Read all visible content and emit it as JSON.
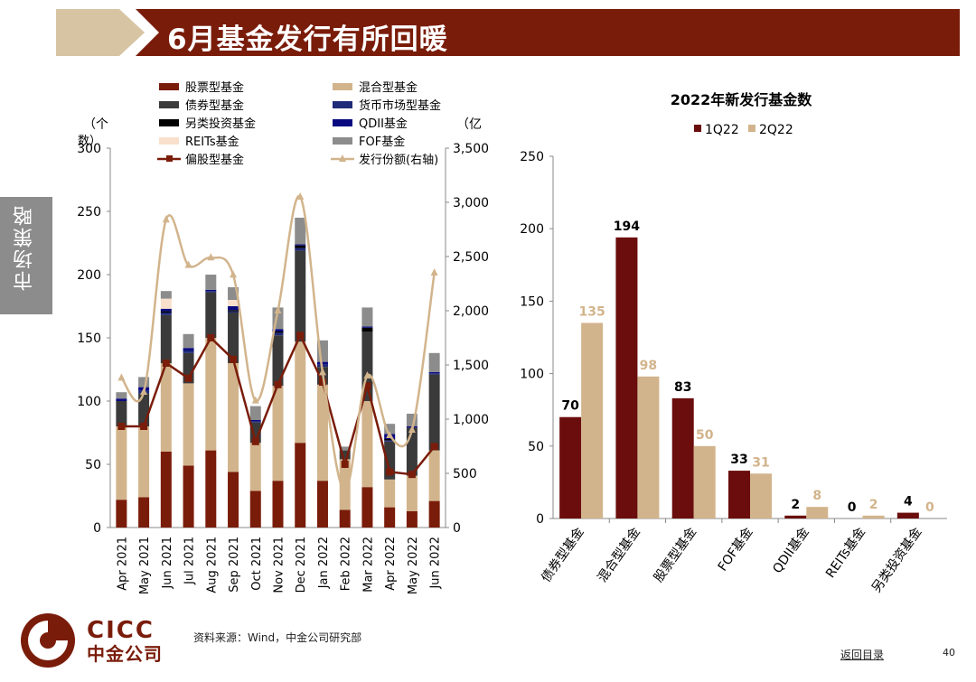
{
  "page": {
    "title": "6月基金发行有所回暖",
    "side_tab": "市场策略",
    "source": "资料来源：Wind，中金公司研究部",
    "back_link": "返回目录",
    "page_number": "40",
    "logo_en": "CICC",
    "logo_cn": "中金公司"
  },
  "colors": {
    "brand": "#7a1c0a",
    "title_bar": "#7a1c0a",
    "stock": "#7a1c0a",
    "mixed": "#d2b48c",
    "bond": "#3a3a3a",
    "money": "#1f2a78",
    "alt": "#000000",
    "qdii": "#0a0a80",
    "reits": "#f8e0cc",
    "fof": "#8c8c8c",
    "partial_stock": "#7a1c0a",
    "issuance": "#d2b48c",
    "q1": "#6b0d0d",
    "q2": "#d2b48c"
  },
  "chart_data": [
    {
      "type": "bar",
      "stacked": true,
      "categories": [
        "Apr 2021",
        "May 2021",
        "Jun 2021",
        "Jul 2021",
        "Aug 2021",
        "Sep 2021",
        "Oct 2021",
        "Nov 2021",
        "Dec 2021",
        "Jan 2022",
        "Feb 2022",
        "Mar 2022",
        "Apr 2022",
        "May 2022",
        "Jun 2022"
      ],
      "y_left_label": "（个数）",
      "y_right_label": "（亿",
      "y_left_range": [
        0,
        300
      ],
      "y_left_ticks": [
        "0",
        "50",
        "100",
        "150",
        "200",
        "250",
        "300"
      ],
      "y_right_range": [
        0,
        3500
      ],
      "y_right_ticks": [
        "0",
        "500",
        "1,000",
        "1,500",
        "2,000",
        "2,500",
        "3,000",
        "3,500"
      ],
      "legend": [
        {
          "name": "股票型基金",
          "key": "stock",
          "kind": "bar"
        },
        {
          "name": "混合型基金",
          "key": "mixed",
          "kind": "bar"
        },
        {
          "name": "债券型基金",
          "key": "bond",
          "kind": "bar"
        },
        {
          "name": "货币市场型基金",
          "key": "money",
          "kind": "bar"
        },
        {
          "name": "另类投资基金",
          "key": "alt",
          "kind": "bar"
        },
        {
          "name": "QDII基金",
          "key": "qdii",
          "kind": "bar"
        },
        {
          "name": "REITs基金",
          "key": "reits",
          "kind": "bar"
        },
        {
          "name": "FOF基金",
          "key": "fof",
          "kind": "bar"
        },
        {
          "name": "偏股型基金",
          "key": "partial_stock",
          "kind": "line-square"
        },
        {
          "name": "发行份额(右轴)",
          "key": "issuance",
          "kind": "line-triangle"
        }
      ],
      "series": [
        {
          "name": "股票型基金",
          "key": "stock",
          "values": [
            22,
            24,
            60,
            49,
            61,
            44,
            29,
            37,
            67,
            37,
            14,
            32,
            16,
            13,
            21
          ]
        },
        {
          "name": "混合型基金",
          "key": "mixed",
          "values": [
            58,
            56,
            70,
            65,
            89,
            86,
            38,
            75,
            80,
            76,
            40,
            68,
            22,
            28,
            40
          ]
        },
        {
          "name": "债券型基金",
          "key": "bond",
          "values": [
            20,
            26,
            38,
            24,
            36,
            40,
            16,
            40,
            72,
            14,
            7,
            55,
            30,
            38,
            60
          ]
        },
        {
          "name": "货币市场型基金",
          "key": "money",
          "values": [
            0,
            2,
            2,
            2,
            1,
            1,
            1,
            2,
            2,
            2,
            0,
            0,
            1,
            0,
            1
          ]
        },
        {
          "name": "另类投资基金",
          "key": "alt",
          "values": [
            0,
            0,
            1,
            0,
            0,
            1,
            0,
            1,
            2,
            0,
            0,
            3,
            1,
            0,
            0
          ]
        },
        {
          "name": "QDII基金",
          "key": "qdii",
          "values": [
            2,
            3,
            2,
            2,
            1,
            3,
            1,
            2,
            1,
            2,
            0,
            1,
            4,
            1,
            1
          ]
        },
        {
          "name": "REITs基金",
          "key": "reits",
          "values": [
            0,
            0,
            8,
            0,
            0,
            5,
            0,
            0,
            0,
            0,
            0,
            0,
            0,
            0,
            0
          ]
        },
        {
          "name": "FOF基金",
          "key": "fof",
          "values": [
            5,
            8,
            6,
            11,
            12,
            10,
            11,
            17,
            21,
            17,
            3,
            15,
            8,
            10,
            15
          ]
        }
      ],
      "lines": [
        {
          "name": "偏股型基金",
          "key": "partial_stock",
          "axis": "left",
          "values": [
            80,
            80,
            130,
            118,
            150,
            133,
            68,
            113,
            152,
            115,
            50,
            112,
            44,
            42,
            64
          ]
        },
        {
          "name": "发行份额(右轴)",
          "key": "issuance",
          "axis": "right",
          "values": [
            1380,
            1250,
            2840,
            2420,
            2490,
            2330,
            1170,
            2000,
            3050,
            1430,
            340,
            1400,
            850,
            900,
            2350
          ]
        }
      ]
    },
    {
      "type": "bar",
      "title": "2022年新发行基金数",
      "categories": [
        "债券型基金",
        "混合型基金",
        "股票型基金",
        "FOF基金",
        "QDII基金",
        "REITs基金",
        "另类投资基金"
      ],
      "y_range": [
        0,
        250
      ],
      "y_ticks": [
        "0",
        "50",
        "100",
        "150",
        "200",
        "250"
      ],
      "legend_position": "top",
      "series": [
        {
          "name": "1Q22",
          "key": "q1",
          "values": [
            70,
            194,
            83,
            33,
            2,
            0,
            4
          ],
          "labels": [
            "70",
            "194",
            "83",
            "33",
            "2",
            "0",
            "4"
          ]
        },
        {
          "name": "2Q22",
          "key": "q2",
          "values": [
            135,
            98,
            50,
            31,
            8,
            2,
            0
          ],
          "labels": [
            "135",
            "98",
            "50",
            "31",
            "8",
            "2",
            "0"
          ]
        }
      ]
    }
  ]
}
